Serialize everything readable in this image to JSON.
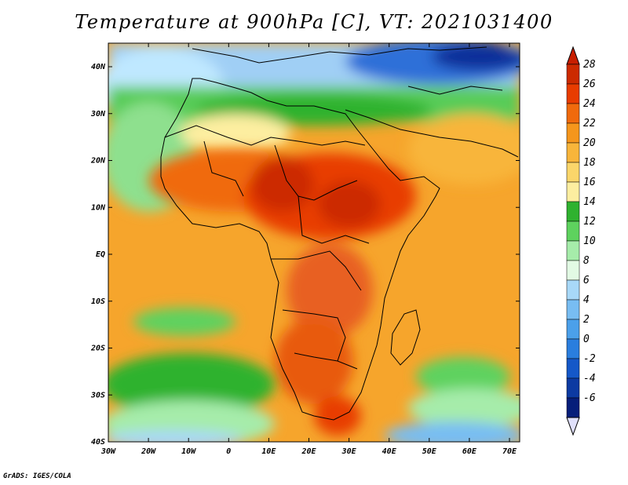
{
  "title": "Temperature at 900hPa [C], VT: 2021031400",
  "credit": "GrADS: IGES/COLA",
  "lat_labels": [
    "40N",
    "30N",
    "20N",
    "10N",
    "EQ",
    "10S",
    "20S",
    "30S",
    "40S"
  ],
  "lon_labels": [
    "30W",
    "20W",
    "10W",
    "0",
    "10E",
    "20E",
    "30E",
    "40E",
    "50E",
    "60E",
    "70E"
  ],
  "colorbar": {
    "labels": [
      "28",
      "26",
      "24",
      "22",
      "20",
      "18",
      "16",
      "14",
      "12",
      "10",
      "8",
      "6",
      "4",
      "2",
      "0",
      "-2",
      "-4",
      "-6"
    ],
    "colors": [
      "#cc2a00",
      "#e83c00",
      "#f06a0c",
      "#f5961c",
      "#f8b53a",
      "#fbd66a",
      "#fdeea0",
      "#2fb22f",
      "#5ed25e",
      "#a6ecaa",
      "#e2fae4",
      "#a8d8f8",
      "#78bdf2",
      "#4ba0ea",
      "#2a7ede",
      "#1558c8",
      "#0c3aa2",
      "#061e7a"
    ],
    "top_cap_color": "#c81e00",
    "bottom_cap_color": "#e0e0fa"
  }
}
